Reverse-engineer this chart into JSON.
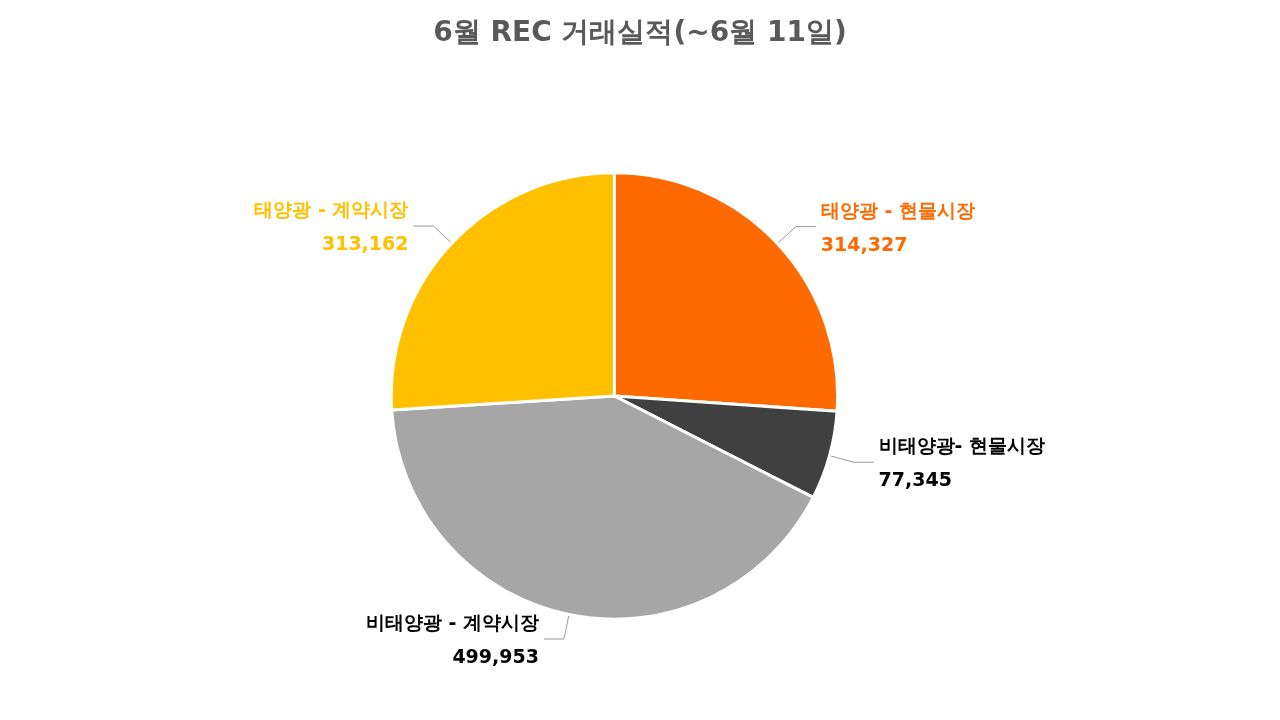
{
  "chart_data": {
    "type": "pie",
    "title": "6월 REC 거래실적(~6월 11일)",
    "categories": [
      "태양광 - 현물시장",
      "비태양광- 현물시장",
      "비태양광 - 계약시장",
      "태양광 - 계약시장"
    ],
    "values": [
      314327,
      77345,
      499953,
      313162
    ],
    "value_labels": [
      "314,327",
      "77,345",
      "499,953",
      "313,162"
    ],
    "colors": [
      "#ff6a00",
      "#404040",
      "#a6a6a6",
      "#ffc000"
    ],
    "legend": false
  }
}
